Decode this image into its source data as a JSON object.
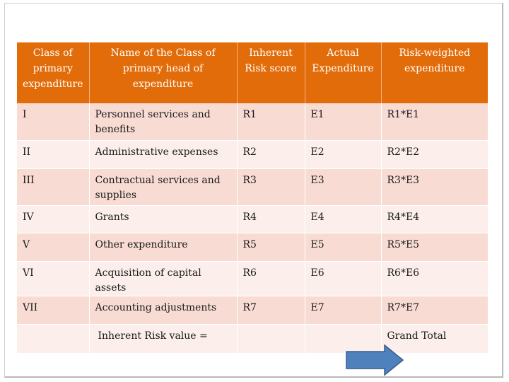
{
  "table": {
    "headers": [
      "Class of primary expenditure",
      "Name of the Class of primary head of expenditure",
      "Inherent Risk score",
      "Actual Expenditure",
      "Risk-weighted expenditure"
    ],
    "rows": [
      [
        "I",
        "Personnel services and benefits",
        "R1",
        "E1",
        "R1*E1"
      ],
      [
        "II",
        "Administrative expenses",
        "R2",
        "E2",
        "R2*E2"
      ],
      [
        "III",
        "Contractual services and supplies",
        "R3",
        "E3",
        "R3*E3"
      ],
      [
        "IV",
        "Grants",
        "R4",
        "E4",
        "R4*E4"
      ],
      [
        "V",
        "Other expenditure",
        "R5",
        "E5",
        "R5*E5"
      ],
      [
        "VI",
        "Acquisition of capital assets",
        "R6",
        "E6",
        "R6*E6"
      ],
      [
        "VII",
        "Accounting adjustments",
        "R7",
        "E7",
        "R7*E7"
      ]
    ],
    "total_row": {
      "label": "Inherent Risk value   =",
      "grand_total": "Grand Total"
    }
  },
  "colors": {
    "header_bg": "#e36c0a",
    "row_dark": "#f8dcd3",
    "row_light": "#fcefeb",
    "arrow": "#4f81bd"
  },
  "decor": {
    "arrow_icon": "right-arrow-icon"
  }
}
